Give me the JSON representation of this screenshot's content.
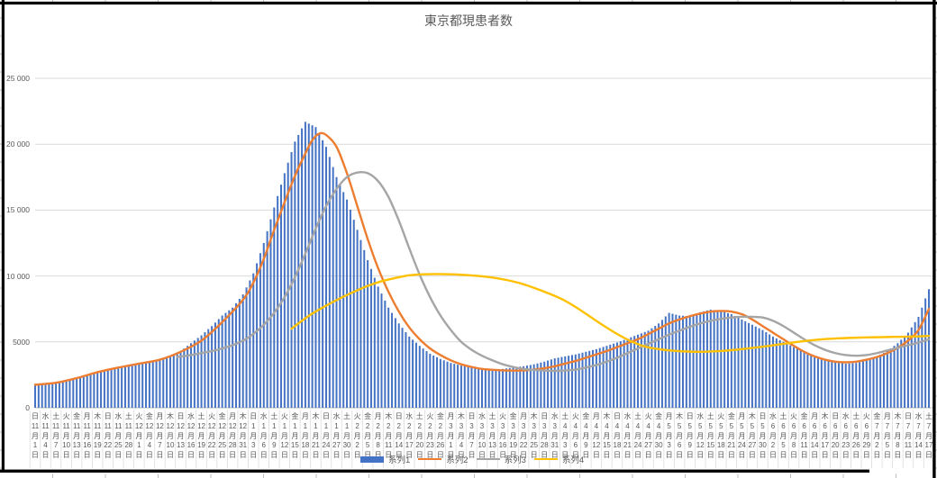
{
  "chart": {
    "title": "東京都現患者数",
    "colors": {
      "bar": "#4472C4",
      "line2": "#ED7D31",
      "line3": "#A5A5A5",
      "line4": "#FFC000",
      "text": "#595959",
      "gridline": "#D9D9D9",
      "axis_line": "#BFBFBF",
      "separator": "#DCDCDC",
      "border": "#000000",
      "sheet_tick": "#BFBFBF"
    },
    "y_axis": {
      "ticks": [
        {
          "label": "0",
          "value": 0
        },
        {
          "label": "5000",
          "value": 5000
        },
        {
          "label": "10 000",
          "value": 10000
        },
        {
          "label": "15 000",
          "value": 15000
        },
        {
          "label": "20 000",
          "value": 20000
        },
        {
          "label": "25 000",
          "value": 25000
        }
      ]
    },
    "x_axis": {
      "weekday_cycle": [
        "日",
        "水",
        "土",
        "火",
        "金",
        "月",
        "木"
      ],
      "month_suffix": "月",
      "day_suffix": "日",
      "month_groups": [
        {
          "month": "11",
          "days": [
            "1",
            "4",
            "7",
            "10",
            "13",
            "16",
            "19",
            "22",
            "25",
            "28"
          ]
        },
        {
          "month": "12",
          "days": [
            "1",
            "4",
            "7",
            "10",
            "13",
            "16",
            "19",
            "22",
            "25",
            "28",
            "31"
          ]
        },
        {
          "month": "1",
          "days": [
            "3",
            "6",
            "9",
            "12",
            "15",
            "18",
            "21",
            "24",
            "27",
            "30"
          ]
        },
        {
          "month": "2",
          "days": [
            "2",
            "5",
            "8",
            "11",
            "14",
            "17",
            "20",
            "23",
            "26"
          ]
        },
        {
          "month": "3",
          "days": [
            "1",
            "4",
            "7",
            "10",
            "13",
            "16",
            "19",
            "22",
            "25",
            "28",
            "31"
          ]
        },
        {
          "month": "4",
          "days": [
            "3",
            "6",
            "9",
            "12",
            "15",
            "18",
            "21",
            "24",
            "27",
            "30"
          ]
        },
        {
          "month": "5",
          "days": [
            "3",
            "6",
            "9",
            "12",
            "15",
            "18",
            "21",
            "24",
            "27",
            "30"
          ]
        },
        {
          "month": "6",
          "days": [
            "2",
            "5",
            "8",
            "11",
            "14",
            "17",
            "20",
            "23",
            "26",
            "29"
          ]
        },
        {
          "month": "7",
          "days": [
            "2",
            "5",
            "8",
            "11",
            "14",
            "17"
          ]
        }
      ]
    },
    "legend": {
      "position": "bottom",
      "items": [
        {
          "label": "系列1",
          "type": "bar",
          "color": "#4472C4"
        },
        {
          "label": "系列2",
          "type": "line",
          "color": "#ED7D31"
        },
        {
          "label": "系列3",
          "type": "line",
          "color": "#A5A5A5"
        },
        {
          "label": "系列4",
          "type": "line",
          "color": "#FFC000"
        }
      ]
    }
  },
  "chart_data": {
    "type": "combo",
    "title": "東京都現患者数",
    "x_description": "daily values, 2020-11-01 (日) through 2021-07-17 (土); category labels every 3 days",
    "ylim": [
      0,
      25000
    ],
    "grid": "horizontal major gridlines every 5000",
    "legend_position": "bottom",
    "series": [
      {
        "name": "系列1",
        "type": "bar",
        "color": "#4472C4",
        "x_start": 0,
        "x_step": 3,
        "values": [
          1700,
          1750,
          1850,
          2000,
          2200,
          2450,
          2700,
          2900,
          3050,
          3200,
          3300,
          3450,
          3600,
          3900,
          4300,
          4900,
          5500,
          6200,
          7000,
          7600,
          8600,
          10200,
          12500,
          15200,
          17800,
          20200,
          21700,
          21300,
          19800,
          17500,
          15800,
          13500,
          11200,
          9200,
          7600,
          6400,
          5400,
          4700,
          4100,
          3700,
          3400,
          3200,
          3050,
          2950,
          2900,
          2950,
          3050,
          3150,
          3300,
          3500,
          3750,
          3900,
          4050,
          4250,
          4450,
          4700,
          4950,
          5250,
          5550,
          5850,
          6400,
          7200,
          7000,
          6950,
          7250,
          7450,
          7350,
          7100,
          6700,
          6300,
          5900,
          5400,
          5000,
          4600,
          4250,
          3950,
          3700,
          3500,
          3350,
          3400,
          3600,
          3900,
          4300,
          4900,
          5700,
          6900,
          9000
        ]
      },
      {
        "name": "系列2",
        "type": "line",
        "color": "#ED7D31",
        "points": [
          [
            0,
            1750
          ],
          [
            6,
            1900
          ],
          [
            12,
            2250
          ],
          [
            18,
            2700
          ],
          [
            24,
            3050
          ],
          [
            30,
            3350
          ],
          [
            36,
            3650
          ],
          [
            42,
            4250
          ],
          [
            48,
            5100
          ],
          [
            54,
            6500
          ],
          [
            60,
            8200
          ],
          [
            63,
            9500
          ],
          [
            66,
            11300
          ],
          [
            69,
            13500
          ],
          [
            72,
            15600
          ],
          [
            75,
            17600
          ],
          [
            78,
            19300
          ],
          [
            80,
            20300
          ],
          [
            82,
            20800
          ],
          [
            84,
            20700
          ],
          [
            87,
            19800
          ],
          [
            90,
            17800
          ],
          [
            93,
            15300
          ],
          [
            96,
            12800
          ],
          [
            99,
            10600
          ],
          [
            102,
            8800
          ],
          [
            105,
            7300
          ],
          [
            108,
            6100
          ],
          [
            111,
            5200
          ],
          [
            114,
            4500
          ],
          [
            117,
            4000
          ],
          [
            120,
            3600
          ],
          [
            123,
            3300
          ],
          [
            126,
            3100
          ],
          [
            129,
            2950
          ],
          [
            132,
            2880
          ],
          [
            135,
            2840
          ],
          [
            138,
            2820
          ],
          [
            141,
            2840
          ],
          [
            144,
            2900
          ],
          [
            147,
            3000
          ],
          [
            150,
            3150
          ],
          [
            153,
            3350
          ],
          [
            156,
            3550
          ],
          [
            159,
            3800
          ],
          [
            162,
            4050
          ],
          [
            165,
            4300
          ],
          [
            168,
            4600
          ],
          [
            171,
            4900
          ],
          [
            174,
            5200
          ],
          [
            177,
            5600
          ],
          [
            180,
            6000
          ],
          [
            183,
            6400
          ],
          [
            186,
            6700
          ],
          [
            189,
            6950
          ],
          [
            192,
            7150
          ],
          [
            195,
            7300
          ],
          [
            198,
            7350
          ],
          [
            201,
            7300
          ],
          [
            204,
            7100
          ],
          [
            207,
            6700
          ],
          [
            210,
            6200
          ],
          [
            213,
            5700
          ],
          [
            216,
            5200
          ],
          [
            219,
            4700
          ],
          [
            222,
            4250
          ],
          [
            225,
            3900
          ],
          [
            228,
            3650
          ],
          [
            231,
            3500
          ],
          [
            234,
            3450
          ],
          [
            237,
            3500
          ],
          [
            240,
            3650
          ],
          [
            243,
            3850
          ],
          [
            246,
            4150
          ],
          [
            249,
            4550
          ],
          [
            252,
            5100
          ],
          [
            255,
            5900
          ],
          [
            258,
            7500
          ]
        ]
      },
      {
        "name": "系列3",
        "type": "line",
        "color": "#A5A5A5",
        "points": [
          [
            41,
            3850
          ],
          [
            45,
            4000
          ],
          [
            48,
            4150
          ],
          [
            51,
            4300
          ],
          [
            54,
            4500
          ],
          [
            57,
            4750
          ],
          [
            60,
            5100
          ],
          [
            63,
            5600
          ],
          [
            66,
            6300
          ],
          [
            69,
            7200
          ],
          [
            72,
            8400
          ],
          [
            75,
            9900
          ],
          [
            78,
            11700
          ],
          [
            81,
            13600
          ],
          [
            84,
            15300
          ],
          [
            87,
            16600
          ],
          [
            90,
            17500
          ],
          [
            93,
            17850
          ],
          [
            96,
            17800
          ],
          [
            99,
            17200
          ],
          [
            102,
            16000
          ],
          [
            105,
            14200
          ],
          [
            108,
            12100
          ],
          [
            111,
            10100
          ],
          [
            114,
            8400
          ],
          [
            117,
            7000
          ],
          [
            120,
            5900
          ],
          [
            123,
            5000
          ],
          [
            126,
            4400
          ],
          [
            129,
            3950
          ],
          [
            132,
            3600
          ],
          [
            135,
            3300
          ],
          [
            138,
            3100
          ],
          [
            141,
            2950
          ],
          [
            144,
            2870
          ],
          [
            147,
            2820
          ],
          [
            150,
            2800
          ],
          [
            153,
            2830
          ],
          [
            156,
            2900
          ],
          [
            159,
            3050
          ],
          [
            162,
            3250
          ],
          [
            165,
            3500
          ],
          [
            168,
            3800
          ],
          [
            171,
            4150
          ],
          [
            174,
            4500
          ],
          [
            177,
            4850
          ],
          [
            180,
            5200
          ],
          [
            183,
            5550
          ],
          [
            186,
            5850
          ],
          [
            189,
            6150
          ],
          [
            192,
            6400
          ],
          [
            195,
            6600
          ],
          [
            198,
            6750
          ],
          [
            201,
            6850
          ],
          [
            204,
            6900
          ],
          [
            207,
            6900
          ],
          [
            210,
            6850
          ],
          [
            213,
            6600
          ],
          [
            216,
            6200
          ],
          [
            219,
            5700
          ],
          [
            222,
            5200
          ],
          [
            225,
            4750
          ],
          [
            228,
            4400
          ],
          [
            231,
            4150
          ],
          [
            234,
            4000
          ],
          [
            237,
            3950
          ],
          [
            240,
            4000
          ],
          [
            243,
            4150
          ],
          [
            246,
            4350
          ],
          [
            249,
            4550
          ],
          [
            252,
            4750
          ],
          [
            255,
            4950
          ],
          [
            258,
            5200
          ]
        ]
      },
      {
        "name": "系列4",
        "type": "line",
        "color": "#FFC000",
        "points": [
          [
            74,
            6000
          ],
          [
            77,
            6600
          ],
          [
            80,
            7150
          ],
          [
            84,
            7750
          ],
          [
            88,
            8300
          ],
          [
            92,
            8800
          ],
          [
            96,
            9250
          ],
          [
            100,
            9600
          ],
          [
            104,
            9850
          ],
          [
            108,
            10050
          ],
          [
            112,
            10130
          ],
          [
            116,
            10150
          ],
          [
            120,
            10130
          ],
          [
            124,
            10080
          ],
          [
            128,
            10000
          ],
          [
            132,
            9880
          ],
          [
            136,
            9700
          ],
          [
            140,
            9450
          ],
          [
            144,
            9100
          ],
          [
            148,
            8700
          ],
          [
            152,
            8250
          ],
          [
            156,
            7650
          ],
          [
            160,
            6950
          ],
          [
            164,
            6250
          ],
          [
            168,
            5600
          ],
          [
            172,
            5050
          ],
          [
            176,
            4650
          ],
          [
            180,
            4450
          ],
          [
            184,
            4330
          ],
          [
            188,
            4270
          ],
          [
            192,
            4250
          ],
          [
            196,
            4280
          ],
          [
            200,
            4350
          ],
          [
            204,
            4450
          ],
          [
            208,
            4570
          ],
          [
            212,
            4700
          ],
          [
            216,
            4850
          ],
          [
            220,
            5000
          ],
          [
            224,
            5120
          ],
          [
            228,
            5210
          ],
          [
            232,
            5270
          ],
          [
            236,
            5310
          ],
          [
            240,
            5340
          ],
          [
            244,
            5360
          ],
          [
            248,
            5380
          ],
          [
            252,
            5400
          ],
          [
            255,
            5420
          ],
          [
            258,
            5450
          ]
        ]
      }
    ]
  }
}
